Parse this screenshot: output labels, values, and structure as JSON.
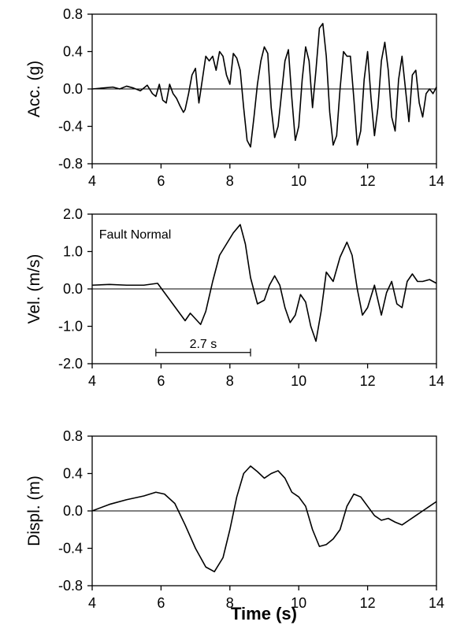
{
  "chart_data": [
    {
      "type": "line",
      "title": "",
      "xlabel": "",
      "ylabel": "Acc. (g)",
      "xlim": [
        4,
        14
      ],
      "ylim": [
        -0.8,
        0.8
      ],
      "xticks": [
        4,
        6,
        8,
        10,
        12,
        14
      ],
      "yticks": [
        -0.8,
        -0.4,
        0.0,
        0.4,
        0.8
      ],
      "ytick_labels": [
        "-0.8",
        "-0.4",
        "0.0",
        "0.4",
        "0.8"
      ],
      "zero_line": true,
      "series": [
        {
          "x": [
            4.0,
            4.3,
            4.6,
            4.8,
            5.0,
            5.2,
            5.4,
            5.6,
            5.75,
            5.85,
            5.95,
            6.05,
            6.15,
            6.25,
            6.35,
            6.45,
            6.55,
            6.65,
            6.7,
            6.8,
            6.9,
            7.0,
            7.1,
            7.2,
            7.3,
            7.4,
            7.5,
            7.6,
            7.7,
            7.8,
            7.9,
            8.0,
            8.1,
            8.2,
            8.3,
            8.4,
            8.5,
            8.6,
            8.7,
            8.8,
            8.9,
            9.0,
            9.1,
            9.2,
            9.3,
            9.4,
            9.5,
            9.6,
            9.7,
            9.8,
            9.9,
            10.0,
            10.1,
            10.2,
            10.3,
            10.4,
            10.5,
            10.6,
            10.7,
            10.8,
            10.9,
            11.0,
            11.1,
            11.2,
            11.3,
            11.4,
            11.5,
            11.6,
            11.7,
            11.8,
            11.9,
            12.0,
            12.1,
            12.2,
            12.3,
            12.4,
            12.5,
            12.6,
            12.7,
            12.8,
            12.9,
            13.0,
            13.1,
            13.2,
            13.3,
            13.4,
            13.5,
            13.6,
            13.7,
            13.8,
            13.9,
            14.0
          ],
          "y": [
            0.0,
            0.01,
            0.02,
            0.0,
            0.03,
            0.01,
            -0.02,
            0.04,
            -0.05,
            -0.08,
            0.05,
            -0.12,
            -0.15,
            0.05,
            -0.05,
            -0.1,
            -0.18,
            -0.25,
            -0.22,
            -0.05,
            0.15,
            0.22,
            -0.15,
            0.1,
            0.35,
            0.3,
            0.35,
            0.2,
            0.4,
            0.35,
            0.15,
            0.05,
            0.38,
            0.33,
            0.2,
            -0.2,
            -0.55,
            -0.62,
            -0.3,
            0.05,
            0.3,
            0.45,
            0.38,
            -0.2,
            -0.52,
            -0.4,
            -0.05,
            0.3,
            0.42,
            -0.1,
            -0.55,
            -0.4,
            0.1,
            0.45,
            0.3,
            -0.2,
            0.2,
            0.65,
            0.7,
            0.35,
            -0.25,
            -0.6,
            -0.5,
            0.0,
            0.4,
            0.35,
            0.35,
            -0.1,
            -0.6,
            -0.45,
            0.1,
            0.4,
            -0.1,
            -0.5,
            -0.2,
            0.3,
            0.5,
            0.2,
            -0.3,
            -0.45,
            0.1,
            0.35,
            0.0,
            -0.35,
            0.15,
            0.2,
            -0.15,
            -0.3,
            -0.05,
            0.0,
            -0.05,
            0.02
          ]
        }
      ]
    },
    {
      "type": "line",
      "title": "",
      "xlabel": "",
      "ylabel": "Vel. (m/s)",
      "xlim": [
        4,
        14
      ],
      "ylim": [
        -2.0,
        2.0
      ],
      "xticks": [
        4,
        6,
        8,
        10,
        12,
        14
      ],
      "yticks": [
        -2.0,
        -1.0,
        0.0,
        1.0,
        2.0
      ],
      "ytick_labels": [
        "-2.0",
        "-1.0",
        "0.0",
        "1.0",
        "2.0"
      ],
      "zero_line": true,
      "annotations": [
        {
          "text": "Fault Normal",
          "x": 4.2,
          "y": 1.35
        },
        {
          "text": "2.7 s",
          "span": [
            5.85,
            8.6
          ],
          "y": -1.7
        }
      ],
      "series": [
        {
          "x": [
            4.0,
            4.5,
            5.0,
            5.5,
            5.9,
            6.1,
            6.3,
            6.5,
            6.7,
            6.85,
            7.0,
            7.15,
            7.3,
            7.5,
            7.7,
            7.9,
            8.1,
            8.3,
            8.45,
            8.6,
            8.8,
            9.0,
            9.15,
            9.3,
            9.45,
            9.6,
            9.75,
            9.9,
            10.05,
            10.2,
            10.35,
            10.5,
            10.65,
            10.8,
            11.0,
            11.2,
            11.4,
            11.55,
            11.7,
            11.85,
            12.0,
            12.2,
            12.4,
            12.55,
            12.7,
            12.85,
            13.0,
            13.15,
            13.3,
            13.45,
            13.6,
            13.8,
            14.0
          ],
          "y": [
            0.1,
            0.12,
            0.1,
            0.1,
            0.15,
            -0.1,
            -0.35,
            -0.6,
            -0.85,
            -0.65,
            -0.8,
            -0.95,
            -0.6,
            0.2,
            0.9,
            1.2,
            1.5,
            1.72,
            1.2,
            0.3,
            -0.4,
            -0.3,
            0.1,
            0.35,
            0.1,
            -0.5,
            -0.9,
            -0.7,
            -0.15,
            -0.35,
            -1.0,
            -1.4,
            -0.6,
            0.45,
            0.2,
            0.85,
            1.25,
            0.9,
            0.0,
            -0.7,
            -0.5,
            0.1,
            -0.7,
            -0.1,
            0.2,
            -0.4,
            -0.5,
            0.2,
            0.4,
            0.2,
            0.2,
            0.25,
            0.15
          ]
        }
      ]
    },
    {
      "type": "line",
      "title": "",
      "xlabel": "Time (s)",
      "ylabel": "Displ. (m)",
      "xlim": [
        4,
        14
      ],
      "ylim": [
        -0.8,
        0.8
      ],
      "xticks": [
        4,
        6,
        8,
        10,
        12,
        14
      ],
      "yticks": [
        -0.8,
        -0.4,
        0.0,
        0.4,
        0.8
      ],
      "ytick_labels": [
        "-0.8",
        "-0.4",
        "0.0",
        "0.4",
        "0.8"
      ],
      "zero_line": true,
      "series": [
        {
          "x": [
            4.0,
            4.5,
            5.0,
            5.5,
            5.85,
            6.1,
            6.4,
            6.7,
            7.0,
            7.3,
            7.55,
            7.8,
            8.0,
            8.2,
            8.4,
            8.6,
            8.8,
            9.0,
            9.2,
            9.4,
            9.6,
            9.8,
            10.0,
            10.2,
            10.4,
            10.6,
            10.8,
            11.0,
            11.2,
            11.4,
            11.6,
            11.8,
            12.0,
            12.2,
            12.4,
            12.6,
            12.8,
            13.0,
            13.2,
            13.4,
            13.6,
            13.8,
            14.0
          ],
          "y": [
            0.0,
            0.07,
            0.12,
            0.16,
            0.2,
            0.18,
            0.08,
            -0.15,
            -0.4,
            -0.6,
            -0.65,
            -0.5,
            -0.2,
            0.15,
            0.4,
            0.48,
            0.42,
            0.35,
            0.4,
            0.43,
            0.35,
            0.2,
            0.15,
            0.05,
            -0.2,
            -0.38,
            -0.36,
            -0.3,
            -0.2,
            0.05,
            0.18,
            0.15,
            0.05,
            -0.05,
            -0.1,
            -0.08,
            -0.12,
            -0.15,
            -0.1,
            -0.05,
            0.0,
            0.05,
            0.1
          ]
        }
      ]
    }
  ]
}
